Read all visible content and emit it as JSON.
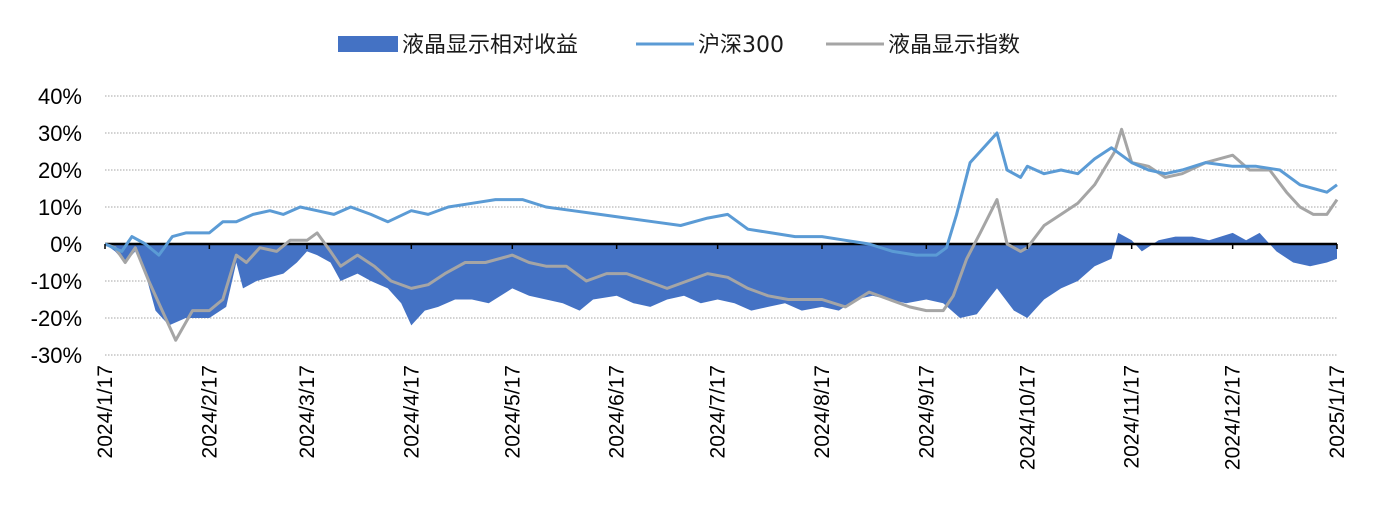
{
  "chart_data": {
    "type": "area",
    "title": "",
    "xlabel": "",
    "ylabel": "",
    "ylim": [
      -30,
      40
    ],
    "y_ticks": [
      "40%",
      "30%",
      "20%",
      "10%",
      "0%",
      "-10%",
      "-20%",
      "-30%"
    ],
    "y_tick_values": [
      40,
      30,
      20,
      10,
      0,
      -10,
      -20,
      -30
    ],
    "x_ticks": [
      "2024/1/17",
      "2024/2/17",
      "2024/3/17",
      "2024/4/17",
      "2024/5/17",
      "2024/6/17",
      "2024/7/17",
      "2024/8/17",
      "2024/9/17",
      "2024/10/17",
      "2024/11/17",
      "2024/12/17",
      "2025/1/17"
    ],
    "grid": "horizontal dotted",
    "legend_position": "top",
    "colors": {
      "area": "#4472C4",
      "hs300": "#5B9BD5",
      "lcd": "#A5A5A5",
      "zero_line": "#000000"
    },
    "series": [
      {
        "name": "液晶显示相对收益",
        "kind": "area",
        "points": [
          [
            "2024-01-17",
            0
          ],
          [
            "2024-01-20",
            -2
          ],
          [
            "2024-01-23",
            -5
          ],
          [
            "2024-01-26",
            -2
          ],
          [
            "2024-01-29",
            -8
          ],
          [
            "2024-02-01",
            -18
          ],
          [
            "2024-02-05",
            -22
          ],
          [
            "2024-02-10",
            -20
          ],
          [
            "2024-02-17",
            -20
          ],
          [
            "2024-02-22",
            -17
          ],
          [
            "2024-02-25",
            -5
          ],
          [
            "2024-02-27",
            -12
          ],
          [
            "2024-03-02",
            -10
          ],
          [
            "2024-03-06",
            -9
          ],
          [
            "2024-03-10",
            -8
          ],
          [
            "2024-03-14",
            -5
          ],
          [
            "2024-03-17",
            -2
          ],
          [
            "2024-03-20",
            -3
          ],
          [
            "2024-03-24",
            -5
          ],
          [
            "2024-03-27",
            -10
          ],
          [
            "2024-04-01",
            -8
          ],
          [
            "2024-04-05",
            -10
          ],
          [
            "2024-04-10",
            -12
          ],
          [
            "2024-04-14",
            -16
          ],
          [
            "2024-04-17",
            -22
          ],
          [
            "2024-04-21",
            -18
          ],
          [
            "2024-04-25",
            -17
          ],
          [
            "2024-04-30",
            -15
          ],
          [
            "2024-05-05",
            -15
          ],
          [
            "2024-05-10",
            -16
          ],
          [
            "2024-05-17",
            -12
          ],
          [
            "2024-05-22",
            -14
          ],
          [
            "2024-05-27",
            -15
          ],
          [
            "2024-06-01",
            -16
          ],
          [
            "2024-06-06",
            -18
          ],
          [
            "2024-06-10",
            -15
          ],
          [
            "2024-06-17",
            -14
          ],
          [
            "2024-06-22",
            -16
          ],
          [
            "2024-06-27",
            -17
          ],
          [
            "2024-07-02",
            -15
          ],
          [
            "2024-07-07",
            -14
          ],
          [
            "2024-07-12",
            -16
          ],
          [
            "2024-07-17",
            -15
          ],
          [
            "2024-07-22",
            -16
          ],
          [
            "2024-07-27",
            -18
          ],
          [
            "2024-08-01",
            -17
          ],
          [
            "2024-08-06",
            -16
          ],
          [
            "2024-08-11",
            -18
          ],
          [
            "2024-08-17",
            -17
          ],
          [
            "2024-08-22",
            -18
          ],
          [
            "2024-08-27",
            -15
          ],
          [
            "2024-09-01",
            -14
          ],
          [
            "2024-09-06",
            -15
          ],
          [
            "2024-09-11",
            -16
          ],
          [
            "2024-09-17",
            -15
          ],
          [
            "2024-09-22",
            -16
          ],
          [
            "2024-09-27",
            -20
          ],
          [
            "2024-10-02",
            -19
          ],
          [
            "2024-10-08",
            -12
          ],
          [
            "2024-10-13",
            -18
          ],
          [
            "2024-10-17",
            -20
          ],
          [
            "2024-10-22",
            -15
          ],
          [
            "2024-10-27",
            -12
          ],
          [
            "2024-11-01",
            -10
          ],
          [
            "2024-11-06",
            -6
          ],
          [
            "2024-11-11",
            -4
          ],
          [
            "2024-11-13",
            3
          ],
          [
            "2024-11-17",
            1
          ],
          [
            "2024-11-20",
            -2
          ],
          [
            "2024-11-25",
            1
          ],
          [
            "2024-11-30",
            2
          ],
          [
            "2024-12-05",
            2
          ],
          [
            "2024-12-10",
            1
          ],
          [
            "2024-12-17",
            3
          ],
          [
            "2024-12-21",
            1
          ],
          [
            "2024-12-25",
            3
          ],
          [
            "2024-12-30",
            -2
          ],
          [
            "2025-01-04",
            -5
          ],
          [
            "2025-01-09",
            -6
          ],
          [
            "2025-01-14",
            -5
          ],
          [
            "2025-01-17",
            -4
          ]
        ]
      },
      {
        "name": "沪深300",
        "kind": "line",
        "points": [
          [
            "2024-01-17",
            0
          ],
          [
            "2024-01-22",
            -2
          ],
          [
            "2024-01-25",
            2
          ],
          [
            "2024-01-29",
            0
          ],
          [
            "2024-02-02",
            -3
          ],
          [
            "2024-02-06",
            2
          ],
          [
            "2024-02-10",
            3
          ],
          [
            "2024-02-17",
            3
          ],
          [
            "2024-02-21",
            6
          ],
          [
            "2024-02-25",
            6
          ],
          [
            "2024-03-01",
            8
          ],
          [
            "2024-03-06",
            9
          ],
          [
            "2024-03-10",
            8
          ],
          [
            "2024-03-15",
            10
          ],
          [
            "2024-03-20",
            9
          ],
          [
            "2024-03-25",
            8
          ],
          [
            "2024-03-30",
            10
          ],
          [
            "2024-04-05",
            8
          ],
          [
            "2024-04-10",
            6
          ],
          [
            "2024-04-17",
            9
          ],
          [
            "2024-04-22",
            8
          ],
          [
            "2024-04-28",
            10
          ],
          [
            "2024-05-05",
            11
          ],
          [
            "2024-05-12",
            12
          ],
          [
            "2024-05-20",
            12
          ],
          [
            "2024-05-27",
            10
          ],
          [
            "2024-06-04",
            9
          ],
          [
            "2024-06-12",
            8
          ],
          [
            "2024-06-20",
            7
          ],
          [
            "2024-06-28",
            6
          ],
          [
            "2024-07-06",
            5
          ],
          [
            "2024-07-14",
            7
          ],
          [
            "2024-07-20",
            8
          ],
          [
            "2024-07-26",
            4
          ],
          [
            "2024-08-02",
            3
          ],
          [
            "2024-08-09",
            2
          ],
          [
            "2024-08-17",
            2
          ],
          [
            "2024-08-24",
            1
          ],
          [
            "2024-08-31",
            0
          ],
          [
            "2024-09-07",
            -2
          ],
          [
            "2024-09-14",
            -3
          ],
          [
            "2024-09-20",
            -3
          ],
          [
            "2024-09-23",
            -1
          ],
          [
            "2024-09-26",
            8
          ],
          [
            "2024-09-30",
            22
          ],
          [
            "2024-10-08",
            30
          ],
          [
            "2024-10-11",
            20
          ],
          [
            "2024-10-15",
            18
          ],
          [
            "2024-10-17",
            21
          ],
          [
            "2024-10-22",
            19
          ],
          [
            "2024-10-27",
            20
          ],
          [
            "2024-11-01",
            19
          ],
          [
            "2024-11-06",
            23
          ],
          [
            "2024-11-11",
            26
          ],
          [
            "2024-11-17",
            22
          ],
          [
            "2024-11-22",
            20
          ],
          [
            "2024-11-27",
            19
          ],
          [
            "2024-12-02",
            20
          ],
          [
            "2024-12-09",
            22
          ],
          [
            "2024-12-17",
            21
          ],
          [
            "2024-12-24",
            21
          ],
          [
            "2024-12-31",
            20
          ],
          [
            "2025-01-06",
            16
          ],
          [
            "2025-01-10",
            15
          ],
          [
            "2025-01-14",
            14
          ],
          [
            "2025-01-17",
            16
          ]
        ]
      },
      {
        "name": "液晶显示指数",
        "kind": "line",
        "points": [
          [
            "2024-01-17",
            0
          ],
          [
            "2024-01-20",
            -1
          ],
          [
            "2024-01-23",
            -5
          ],
          [
            "2024-01-26",
            -1
          ],
          [
            "2024-01-30",
            -10
          ],
          [
            "2024-02-03",
            -18
          ],
          [
            "2024-02-07",
            -26
          ],
          [
            "2024-02-12",
            -18
          ],
          [
            "2024-02-17",
            -18
          ],
          [
            "2024-02-21",
            -15
          ],
          [
            "2024-02-25",
            -3
          ],
          [
            "2024-02-28",
            -5
          ],
          [
            "2024-03-03",
            -1
          ],
          [
            "2024-03-08",
            -2
          ],
          [
            "2024-03-12",
            1
          ],
          [
            "2024-03-17",
            1
          ],
          [
            "2024-03-20",
            3
          ],
          [
            "2024-03-24",
            -2
          ],
          [
            "2024-03-27",
            -6
          ],
          [
            "2024-04-01",
            -3
          ],
          [
            "2024-04-06",
            -6
          ],
          [
            "2024-04-11",
            -10
          ],
          [
            "2024-04-17",
            -12
          ],
          [
            "2024-04-22",
            -11
          ],
          [
            "2024-04-27",
            -8
          ],
          [
            "2024-05-03",
            -5
          ],
          [
            "2024-05-09",
            -5
          ],
          [
            "2024-05-17",
            -3
          ],
          [
            "2024-05-22",
            -5
          ],
          [
            "2024-05-27",
            -6
          ],
          [
            "2024-06-02",
            -6
          ],
          [
            "2024-06-08",
            -10
          ],
          [
            "2024-06-14",
            -8
          ],
          [
            "2024-06-20",
            -8
          ],
          [
            "2024-06-26",
            -10
          ],
          [
            "2024-07-02",
            -12
          ],
          [
            "2024-07-08",
            -10
          ],
          [
            "2024-07-14",
            -8
          ],
          [
            "2024-07-20",
            -9
          ],
          [
            "2024-07-26",
            -12
          ],
          [
            "2024-08-01",
            -14
          ],
          [
            "2024-08-07",
            -15
          ],
          [
            "2024-08-13",
            -15
          ],
          [
            "2024-08-17",
            -15
          ],
          [
            "2024-08-24",
            -17
          ],
          [
            "2024-08-31",
            -13
          ],
          [
            "2024-09-06",
            -15
          ],
          [
            "2024-09-12",
            -17
          ],
          [
            "2024-09-17",
            -18
          ],
          [
            "2024-09-22",
            -18
          ],
          [
            "2024-09-25",
            -14
          ],
          [
            "2024-09-29",
            -4
          ],
          [
            "2024-10-03",
            3
          ],
          [
            "2024-10-08",
            12
          ],
          [
            "2024-10-11",
            0
          ],
          [
            "2024-10-15",
            -2
          ],
          [
            "2024-10-17",
            -1
          ],
          [
            "2024-10-22",
            5
          ],
          [
            "2024-10-27",
            8
          ],
          [
            "2024-11-01",
            11
          ],
          [
            "2024-11-06",
            16
          ],
          [
            "2024-11-12",
            25
          ],
          [
            "2024-11-14",
            31
          ],
          [
            "2024-11-17",
            22
          ],
          [
            "2024-11-22",
            21
          ],
          [
            "2024-11-27",
            18
          ],
          [
            "2024-12-02",
            19
          ],
          [
            "2024-12-09",
            22
          ],
          [
            "2024-12-17",
            24
          ],
          [
            "2024-12-22",
            20
          ],
          [
            "2024-12-28",
            20
          ],
          [
            "2025-01-02",
            14
          ],
          [
            "2025-01-06",
            10
          ],
          [
            "2025-01-10",
            8
          ],
          [
            "2025-01-14",
            8
          ],
          [
            "2025-01-17",
            12
          ]
        ]
      }
    ]
  }
}
